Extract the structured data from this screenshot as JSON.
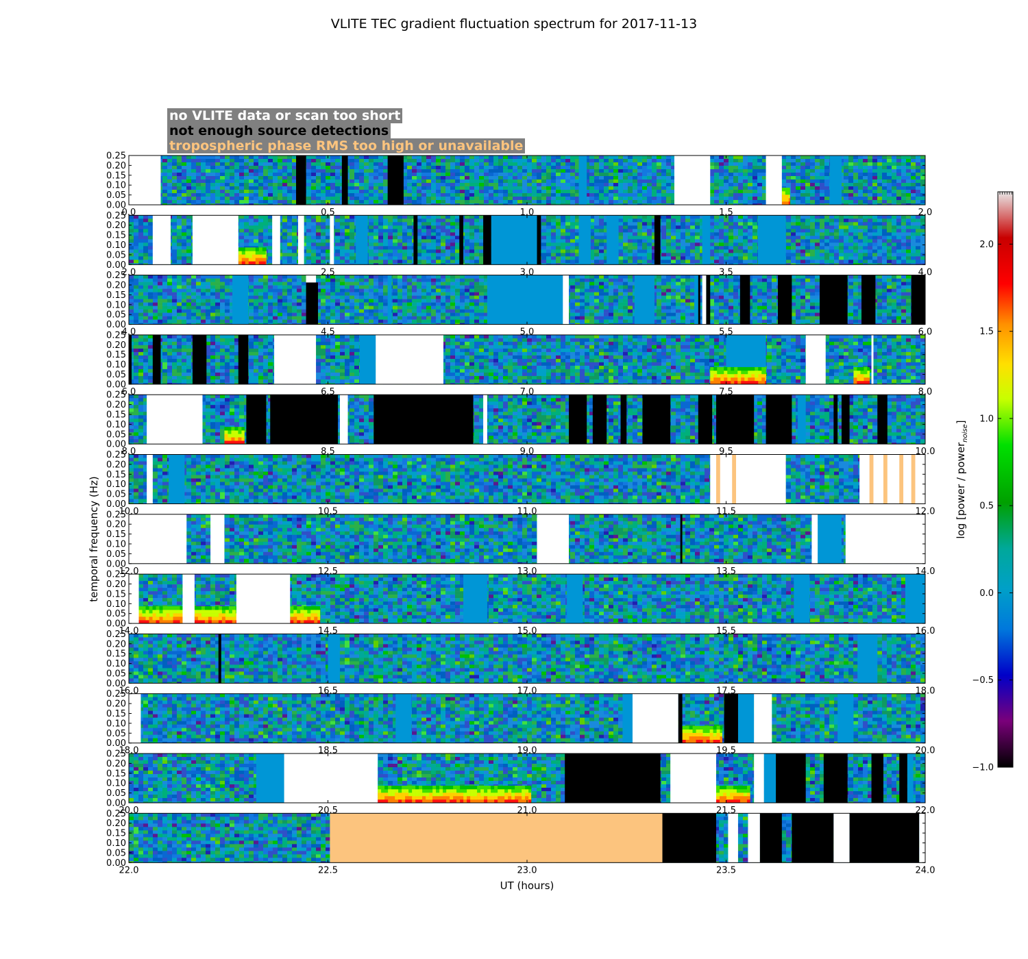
{
  "chart_data": {
    "type": "heatmap",
    "title": "VLITE TEC gradient fluctuation spectrum for 2017-11-13",
    "xlabel": "UT (hours)",
    "ylabel": "temporal frequency (Hz)",
    "ylim": [
      0,
      0.25
    ],
    "yticks": [
      "0.00",
      "0.05",
      "0.10",
      "0.15",
      "0.20",
      "0.25"
    ],
    "colorbar": {
      "label": "log [power / power",
      "label_sub": "noise",
      "label_end": "]",
      "range": [
        -1.0,
        2.3
      ],
      "ticks": [
        "−1.0",
        "−0.5",
        "0.0",
        "0.5",
        "1.0",
        "1.5",
        "2.0"
      ],
      "tick_values": [
        -1.0,
        -0.5,
        0.0,
        0.5,
        1.0,
        1.5,
        2.0
      ]
    },
    "legend": {
      "no_data": "no VLITE data or scan too short",
      "few_sources": "not enough source detections",
      "tropo": "tropospheric phase RMS too high or unavailable"
    },
    "panels": [
      {
        "range": [
          0,
          2
        ],
        "ticks": [
          "0.0",
          "0.5",
          "1.0",
          "1.5",
          "2.0"
        ],
        "segments": [
          {
            "x0": 0.0,
            "x1": 0.08,
            "kind": "none"
          },
          {
            "x0": 0.42,
            "x1": 0.445,
            "kind": "few"
          },
          {
            "x0": 0.535,
            "x1": 0.55,
            "kind": "few"
          },
          {
            "x0": 0.65,
            "x1": 0.69,
            "kind": "few"
          },
          {
            "x0": 1.37,
            "x1": 1.46,
            "kind": "none"
          },
          {
            "x0": 1.6,
            "x1": 1.64,
            "kind": "none"
          }
        ],
        "flats": [
          [
            1.13,
            1.15
          ],
          [
            1.76,
            1.79
          ]
        ],
        "hot": [
          [
            1.64,
            1.66
          ]
        ]
      },
      {
        "range": [
          2,
          4
        ],
        "ticks": [
          "2.0",
          "2.5",
          "3.0",
          "3.5",
          "4.0"
        ],
        "segments": [
          {
            "x0": 2.06,
            "x1": 2.105,
            "kind": "none"
          },
          {
            "x0": 2.16,
            "x1": 2.275,
            "kind": "none"
          },
          {
            "x0": 2.36,
            "x1": 2.38,
            "kind": "none"
          },
          {
            "x0": 2.425,
            "x1": 2.44,
            "kind": "none"
          },
          {
            "x0": 2.505,
            "x1": 2.515,
            "kind": "none"
          },
          {
            "x0": 2.715,
            "x1": 2.725,
            "kind": "few"
          },
          {
            "x0": 2.83,
            "x1": 2.84,
            "kind": "few"
          },
          {
            "x0": 2.89,
            "x1": 2.91,
            "kind": "few"
          },
          {
            "x0": 3.025,
            "x1": 3.035,
            "kind": "few"
          },
          {
            "x0": 3.32,
            "x1": 3.335,
            "kind": "few"
          }
        ],
        "flats": [
          [
            2.57,
            2.6
          ],
          [
            2.91,
            3.03
          ],
          [
            3.13,
            3.16
          ],
          [
            3.2,
            3.23
          ],
          [
            3.44,
            3.46
          ],
          [
            3.58,
            3.65
          ]
        ],
        "hot": [
          [
            2.275,
            2.345
          ]
        ]
      },
      {
        "range": [
          4,
          6
        ],
        "ticks": [
          "4.0",
          "4.5",
          "5.0",
          "5.5",
          "6.0"
        ],
        "segments": [
          {
            "x0": 4.445,
            "x1": 4.47,
            "kind": "none"
          },
          {
            "x0": 4.445,
            "x1": 4.475,
            "kind": "few_part"
          },
          {
            "x0": 5.09,
            "x1": 5.105,
            "kind": "none"
          },
          {
            "x0": 5.43,
            "x1": 5.435,
            "kind": "few"
          },
          {
            "x0": 5.44,
            "x1": 5.45,
            "kind": "none"
          },
          {
            "x0": 5.45,
            "x1": 5.46,
            "kind": "few"
          },
          {
            "x0": 5.535,
            "x1": 5.56,
            "kind": "few"
          },
          {
            "x0": 5.63,
            "x1": 5.665,
            "kind": "few"
          },
          {
            "x0": 5.735,
            "x1": 5.805,
            "kind": "few"
          },
          {
            "x0": 5.84,
            "x1": 5.875,
            "kind": "few"
          },
          {
            "x0": 5.965,
            "x1": 6.0,
            "kind": "few"
          }
        ],
        "flats": [
          [
            4.26,
            4.3
          ],
          [
            4.65,
            4.66
          ],
          [
            4.9,
            5.09
          ],
          [
            5.27,
            5.32
          ],
          [
            5.42,
            5.43
          ]
        ],
        "hot": []
      },
      {
        "range": [
          6,
          8
        ],
        "ticks": [
          "6.0",
          "6.5",
          "7.0",
          "7.5",
          "8.0"
        ],
        "segments": [
          {
            "x0": 6.0,
            "x1": 6.007,
            "kind": "few"
          },
          {
            "x0": 6.06,
            "x1": 6.08,
            "kind": "few"
          },
          {
            "x0": 6.16,
            "x1": 6.195,
            "kind": "few"
          },
          {
            "x0": 6.275,
            "x1": 6.3,
            "kind": "few"
          },
          {
            "x0": 6.365,
            "x1": 6.47,
            "kind": "none"
          },
          {
            "x0": 6.62,
            "x1": 6.79,
            "kind": "none"
          },
          {
            "x0": 7.7,
            "x1": 7.75,
            "kind": "none"
          },
          {
            "x0": 7.865,
            "x1": 7.87,
            "kind": "none"
          }
        ],
        "flats": [
          [
            6.58,
            6.62
          ],
          [
            7.5,
            7.6
          ]
        ],
        "hot": [
          [
            7.46,
            7.6
          ],
          [
            7.82,
            7.86
          ]
        ]
      },
      {
        "range": [
          8,
          10
        ],
        "ticks": [
          "8.0",
          "8.5",
          "9.0",
          "9.5",
          "10.0"
        ],
        "segments": [
          {
            "x0": 8.045,
            "x1": 8.185,
            "kind": "none"
          },
          {
            "x0": 8.295,
            "x1": 8.345,
            "kind": "few"
          },
          {
            "x0": 8.355,
            "x1": 8.525,
            "kind": "few"
          },
          {
            "x0": 8.53,
            "x1": 8.55,
            "kind": "none"
          },
          {
            "x0": 8.615,
            "x1": 8.865,
            "kind": "few"
          },
          {
            "x0": 8.89,
            "x1": 8.9,
            "kind": "none"
          },
          {
            "x0": 9.105,
            "x1": 9.15,
            "kind": "few"
          },
          {
            "x0": 9.165,
            "x1": 9.2,
            "kind": "few"
          },
          {
            "x0": 9.235,
            "x1": 9.25,
            "kind": "few"
          },
          {
            "x0": 9.29,
            "x1": 9.36,
            "kind": "few"
          },
          {
            "x0": 9.43,
            "x1": 9.465,
            "kind": "few"
          },
          {
            "x0": 9.475,
            "x1": 9.57,
            "kind": "few"
          },
          {
            "x0": 9.6,
            "x1": 9.665,
            "kind": "few"
          },
          {
            "x0": 9.77,
            "x1": 9.78,
            "kind": "few"
          },
          {
            "x0": 9.79,
            "x1": 9.81,
            "kind": "few"
          },
          {
            "x0": 9.88,
            "x1": 9.905,
            "kind": "few"
          }
        ],
        "flats": [
          [
            8.37,
            8.4
          ],
          [
            9.68,
            9.7
          ]
        ],
        "hot": [
          [
            8.24,
            8.29
          ]
        ]
      },
      {
        "range": [
          10,
          12
        ],
        "ticks": [
          "10.0",
          "10.5",
          "11.0",
          "11.5",
          "12.0"
        ],
        "segments": [
          {
            "x0": 10.045,
            "x1": 10.06,
            "kind": "none"
          },
          {
            "x0": 11.46,
            "x1": 11.65,
            "kind": "none"
          },
          {
            "x0": 11.475,
            "x1": 11.485,
            "kind": "tropo"
          },
          {
            "x0": 11.515,
            "x1": 11.525,
            "kind": "tropo"
          },
          {
            "x0": 11.835,
            "x1": 12.0,
            "kind": "none"
          },
          {
            "x0": 11.86,
            "x1": 11.87,
            "kind": "tropo"
          },
          {
            "x0": 11.895,
            "x1": 11.905,
            "kind": "tropo"
          },
          {
            "x0": 11.935,
            "x1": 11.945,
            "kind": "tropo"
          },
          {
            "x0": 11.965,
            "x1": 11.975,
            "kind": "tropo"
          }
        ],
        "flats": [
          [
            10.1,
            10.14
          ]
        ],
        "hot": []
      },
      {
        "range": [
          12,
          14
        ],
        "ticks": [
          "12.0",
          "12.5",
          "13.0",
          "13.5",
          "14.0"
        ],
        "segments": [
          {
            "x0": 12.0,
            "x1": 12.145,
            "kind": "none"
          },
          {
            "x0": 12.205,
            "x1": 12.24,
            "kind": "none"
          },
          {
            "x0": 13.025,
            "x1": 13.105,
            "kind": "none"
          },
          {
            "x0": 13.715,
            "x1": 13.73,
            "kind": "none"
          },
          {
            "x0": 13.8,
            "x1": 14.0,
            "kind": "none"
          },
          {
            "x0": 13.385,
            "x1": 13.39,
            "kind": "few"
          }
        ],
        "flats": [
          [
            13.73,
            13.79
          ]
        ],
        "hot": []
      },
      {
        "range": [
          14,
          16
        ],
        "ticks": [
          "14.0",
          "14.5",
          "15.0",
          "15.5",
          "16.0"
        ],
        "segments": [
          {
            "x0": 14.0,
            "x1": 14.025,
            "kind": "none"
          },
          {
            "x0": 14.135,
            "x1": 14.165,
            "kind": "none"
          },
          {
            "x0": 14.27,
            "x1": 14.405,
            "kind": "none"
          }
        ],
        "flats": [
          [
            14.84,
            14.9
          ],
          [
            15.1,
            15.14
          ],
          [
            15.67,
            15.71
          ],
          [
            15.95,
            16.0
          ]
        ],
        "hot": [
          [
            14.025,
            14.135
          ],
          [
            14.165,
            14.27
          ],
          [
            14.405,
            14.48
          ]
        ]
      },
      {
        "range": [
          16,
          18
        ],
        "ticks": [
          "16.0",
          "16.5",
          "17.0",
          "17.5",
          "18.0"
        ],
        "segments": [
          {
            "x0": 16.225,
            "x1": 16.232,
            "kind": "few"
          }
        ],
        "flats": [
          [
            16.5,
            16.53
          ],
          [
            17.83,
            17.88
          ]
        ],
        "hot": []
      },
      {
        "range": [
          18,
          20
        ],
        "ticks": [
          "18.0",
          "18.5",
          "19.0",
          "19.5",
          "20.0"
        ],
        "segments": [
          {
            "x0": 18.0,
            "x1": 18.03,
            "kind": "none"
          },
          {
            "x0": 19.265,
            "x1": 19.38,
            "kind": "none"
          },
          {
            "x0": 19.38,
            "x1": 19.39,
            "kind": "few"
          },
          {
            "x0": 19.495,
            "x1": 19.53,
            "kind": "few"
          },
          {
            "x0": 19.57,
            "x1": 19.615,
            "kind": "none"
          }
        ],
        "flats": [
          [
            18.67,
            18.71
          ],
          [
            19.24,
            19.265
          ],
          [
            19.53,
            19.57
          ],
          [
            19.78,
            19.82
          ]
        ],
        "hot": [
          [
            19.39,
            19.49
          ]
        ]
      },
      {
        "range": [
          20,
          22
        ],
        "ticks": [
          "20.0",
          "20.5",
          "21.0",
          "21.5",
          "22.0"
        ],
        "segments": [
          {
            "x0": 20.39,
            "x1": 20.625,
            "kind": "none"
          },
          {
            "x0": 21.095,
            "x1": 21.335,
            "kind": "few"
          },
          {
            "x0": 21.36,
            "x1": 21.475,
            "kind": "none"
          },
          {
            "x0": 21.57,
            "x1": 21.595,
            "kind": "none"
          },
          {
            "x0": 21.625,
            "x1": 21.7,
            "kind": "few"
          },
          {
            "x0": 21.745,
            "x1": 21.805,
            "kind": "few"
          },
          {
            "x0": 21.865,
            "x1": 21.895,
            "kind": "few"
          },
          {
            "x0": 21.935,
            "x1": 21.955,
            "kind": "few"
          }
        ],
        "flats": [
          [
            20.32,
            20.39
          ],
          [
            21.595,
            21.625
          ],
          [
            21.955,
            21.97
          ]
        ],
        "hot": [
          [
            20.625,
            21.01
          ],
          [
            21.475,
            21.56
          ]
        ]
      },
      {
        "range": [
          22,
          24
        ],
        "ticks": [
          "22.0",
          "22.5",
          "23.0",
          "23.5",
          "24.0"
        ],
        "segments": [
          {
            "x0": 22.505,
            "x1": 23.34,
            "kind": "tropo"
          },
          {
            "x0": 23.34,
            "x1": 23.475,
            "kind": "few"
          },
          {
            "x0": 23.505,
            "x1": 23.53,
            "kind": "none"
          },
          {
            "x0": 23.555,
            "x1": 23.585,
            "kind": "none"
          },
          {
            "x0": 23.585,
            "x1": 23.64,
            "kind": "few"
          },
          {
            "x0": 23.665,
            "x1": 23.77,
            "kind": "few"
          },
          {
            "x0": 23.77,
            "x1": 23.81,
            "kind": "none"
          },
          {
            "x0": 23.81,
            "x1": 23.985,
            "kind": "few"
          },
          {
            "x0": 23.985,
            "x1": 24.0,
            "kind": "none"
          }
        ],
        "flats": [],
        "hot": []
      }
    ]
  }
}
